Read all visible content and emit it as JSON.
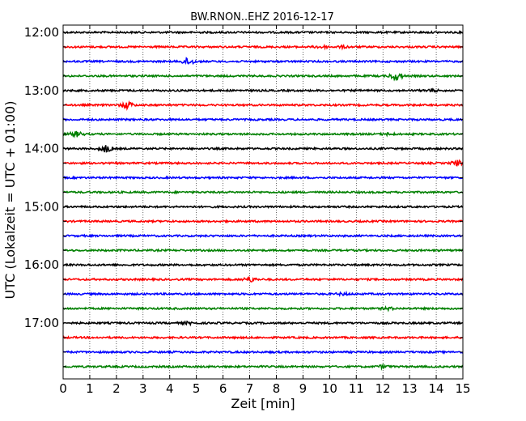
{
  "chart_data": {
    "type": "line",
    "title": "BW.RNON..EHZ 2016-12-17",
    "xlabel": "Zeit  [min]",
    "ylabel": "UTC (Lokalzeit = UTC + 01:00)",
    "xlim": [
      0,
      15
    ],
    "x_ticks": [
      "0",
      "1",
      "2",
      "3",
      "4",
      "5",
      "6",
      "7",
      "8",
      "9",
      "10",
      "11",
      "12",
      "13",
      "14",
      "15"
    ],
    "y_ticks": [
      "12:00",
      "13:00",
      "14:00",
      "15:00",
      "16:00",
      "17:00"
    ],
    "y_tick_hours": [
      12,
      13,
      14,
      15,
      16,
      17
    ],
    "grid": "vertical-dotted",
    "trace_interval_min": 15,
    "first_trace": "12:00",
    "trace_count": 24,
    "colors": [
      "#000000",
      "#ff0000",
      "#0000ff",
      "#008000"
    ],
    "events": [
      {
        "trace": 1,
        "minute": 9.7,
        "amp": 0.5
      },
      {
        "trace": 1,
        "minute": 10.5,
        "amp": 0.35
      },
      {
        "trace": 2,
        "minute": 4.7,
        "amp": 1.4
      },
      {
        "trace": 3,
        "minute": 12.5,
        "amp": 1.6
      },
      {
        "trace": 4,
        "minute": 13.8,
        "amp": 0.5
      },
      {
        "trace": 5,
        "minute": 2.4,
        "amp": 1.3
      },
      {
        "trace": 7,
        "minute": 0.5,
        "amp": 1.0
      },
      {
        "trace": 7,
        "minute": 12.2,
        "amp": 0.35
      },
      {
        "trace": 8,
        "minute": 1.6,
        "amp": 1.4
      },
      {
        "trace": 9,
        "minute": 14.8,
        "amp": 1.0
      },
      {
        "trace": 17,
        "minute": 7.0,
        "amp": 1.0
      },
      {
        "trace": 18,
        "minute": 10.5,
        "amp": 0.4
      },
      {
        "trace": 19,
        "minute": 12.2,
        "amp": 0.45
      },
      {
        "trace": 20,
        "minute": 4.7,
        "amp": 0.4
      },
      {
        "trace": 23,
        "minute": 12.0,
        "amp": 0.5
      }
    ]
  }
}
